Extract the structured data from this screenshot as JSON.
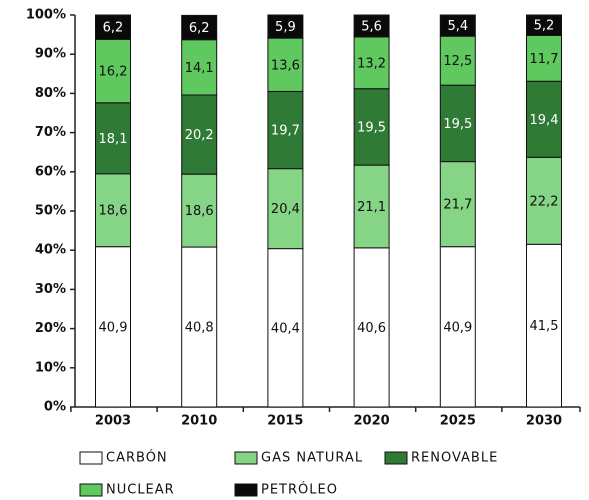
{
  "chart_data": {
    "type": "stacked-bar",
    "categories": [
      "2003",
      "2010",
      "2015",
      "2020",
      "2025",
      "2030"
    ],
    "series": [
      {
        "name": "CARBÓN",
        "color": "#ffffff",
        "values": [
          40.9,
          40.8,
          40.4,
          40.6,
          40.9,
          41.5
        ],
        "value_labels": [
          "40,9",
          "40,8",
          "40,4",
          "40,6",
          "40,9",
          "41,5"
        ]
      },
      {
        "name": "GAS NATURAL",
        "color": "#86d486",
        "values": [
          18.6,
          18.6,
          20.4,
          21.1,
          21.7,
          22.2
        ],
        "value_labels": [
          "18,6",
          "18,6",
          "20,4",
          "21,1",
          "21,7",
          "22,2"
        ]
      },
      {
        "name": "RENOVABLE",
        "color": "#2f7a34",
        "values": [
          18.1,
          20.2,
          19.7,
          19.5,
          19.5,
          19.4
        ],
        "value_labels": [
          "18,1",
          "20,2",
          "19,7",
          "19,5",
          "19,5",
          "19,4"
        ]
      },
      {
        "name": "NUCLEAR",
        "color": "#5fc95f",
        "values": [
          16.2,
          14.1,
          13.6,
          13.2,
          12.5,
          11.7
        ],
        "value_labels": [
          "16,2",
          "14,1",
          "13,6",
          "13,2",
          "12,5",
          "11,7"
        ]
      },
      {
        "name": "PETRÓLEO",
        "color": "#0a0a0a",
        "values": [
          6.2,
          6.2,
          5.9,
          5.6,
          5.4,
          5.2
        ],
        "value_labels": [
          "6,2",
          "6,2",
          "5,9",
          "5,6",
          "5,4",
          "5,2"
        ]
      }
    ],
    "ylim": [
      0,
      100
    ],
    "yticks": [
      {
        "value": 0,
        "label": "0%"
      },
      {
        "value": 10,
        "label": "10%"
      },
      {
        "value": 20,
        "label": "20%"
      },
      {
        "value": 30,
        "label": "30%"
      },
      {
        "value": 40,
        "label": "40%"
      },
      {
        "value": 50,
        "label": "50%"
      },
      {
        "value": 60,
        "label": "60%"
      },
      {
        "value": 70,
        "label": "70%"
      },
      {
        "value": 80,
        "label": "80%"
      },
      {
        "value": 90,
        "label": "90%"
      },
      {
        "value": 100,
        "label": "100%"
      }
    ]
  }
}
